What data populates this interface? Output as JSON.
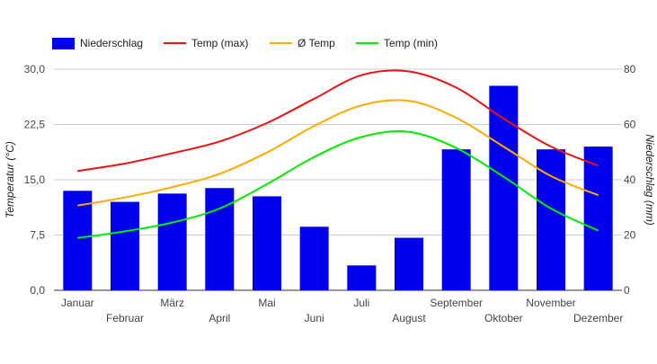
{
  "chart_data": {
    "type": "bar",
    "categories": [
      "Januar",
      "Februar",
      "März",
      "April",
      "Mai",
      "Juni",
      "Juli",
      "August",
      "September",
      "Oktober",
      "November",
      "Dezember"
    ],
    "y_left": {
      "label": "Temperatur (°C)",
      "ylim": [
        0,
        30
      ],
      "ticks": [
        "0,0",
        "7,5",
        "15,0",
        "22,5",
        "30,0"
      ],
      "tick_values": [
        0,
        7.5,
        15,
        22.5,
        30
      ]
    },
    "y_right": {
      "label": "Niederschlag (mm)",
      "ylim": [
        0,
        80
      ],
      "ticks": [
        "0",
        "20",
        "40",
        "60",
        "80"
      ],
      "tick_values": [
        0,
        20,
        40,
        60,
        80
      ]
    },
    "series": [
      {
        "name": "Niederschlag",
        "kind": "bar",
        "axis": "right",
        "color": "#0000ee",
        "values": [
          36,
          32,
          35,
          37,
          34,
          23,
          9,
          19,
          51,
          74,
          51,
          52
        ]
      },
      {
        "name": "Temp (max)",
        "kind": "line",
        "axis": "left",
        "color": "#ee1111",
        "values": [
          16.2,
          17.2,
          18.6,
          20.2,
          22.7,
          26,
          29.2,
          29.7,
          27.5,
          23.3,
          19.5,
          16.9
        ]
      },
      {
        "name": "Ø Temp",
        "kind": "line",
        "axis": "left",
        "color": "#ffaa00",
        "values": [
          11.5,
          12.6,
          14,
          15.8,
          18.7,
          22.3,
          25.1,
          25.7,
          23.4,
          19.5,
          15.5,
          12.9
        ]
      },
      {
        "name": "Temp (min)",
        "kind": "line",
        "axis": "left",
        "color": "#00ee00",
        "values": [
          7.1,
          8,
          9.2,
          11.1,
          14.4,
          18.1,
          20.8,
          21.5,
          19.3,
          15.4,
          11.1,
          8.1
        ]
      }
    ],
    "legend_position": "top-left",
    "grid": true
  }
}
